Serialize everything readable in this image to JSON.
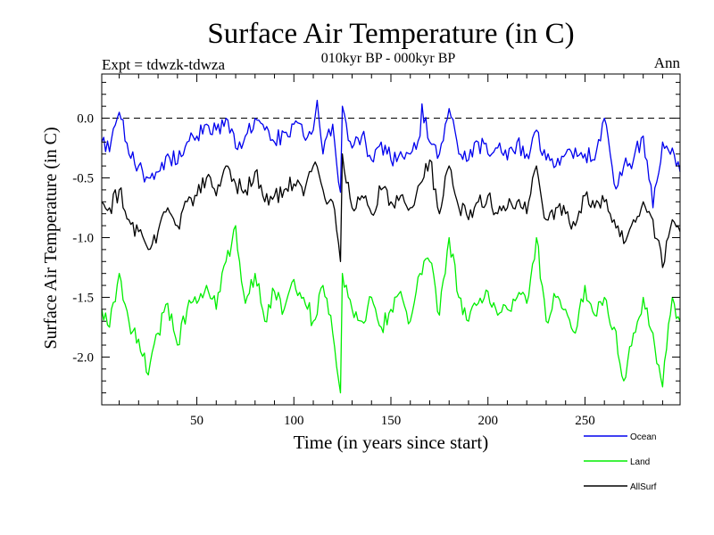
{
  "chart_data": {
    "type": "line",
    "title": "Surface Air Temperature (in C)",
    "subtitle": "010kyr BP - 000kyr BP",
    "left_label": "Expt = tdwzk-tdwza",
    "right_label": "Ann",
    "xlabel": "Time (in years since start)",
    "ylabel": "Surface Air Temperature (in C)",
    "xlim": [
      1,
      299
    ],
    "ylim": [
      -2.4,
      0.37
    ],
    "x_ticks": [
      50,
      100,
      150,
      200,
      250
    ],
    "y_ticks": [
      0.0,
      -0.5,
      -1.0,
      -1.5,
      -2.0
    ],
    "y_tick_labels": [
      "0.0",
      "-0.5",
      "-1.0",
      "-1.5",
      "-2.0"
    ],
    "reference_line": 0.0,
    "legend_position": "bottom-right",
    "series": [
      {
        "name": "Ocean",
        "color": "#0000ee",
        "x": [
          1,
          5,
          10,
          15,
          20,
          25,
          30,
          35,
          40,
          45,
          50,
          55,
          60,
          65,
          70,
          75,
          80,
          85,
          90,
          95,
          100,
          105,
          110,
          112,
          115,
          120,
          124,
          125,
          130,
          135,
          140,
          145,
          150,
          155,
          160,
          165,
          166,
          170,
          175,
          180,
          185,
          190,
          195,
          200,
          205,
          210,
          215,
          220,
          225,
          230,
          235,
          240,
          245,
          250,
          255,
          260,
          265,
          270,
          275,
          280,
          285,
          290,
          295,
          299
        ],
        "values": [
          -0.2,
          -0.28,
          0.05,
          -0.3,
          -0.4,
          -0.5,
          -0.45,
          -0.3,
          -0.38,
          -0.2,
          -0.15,
          -0.05,
          -0.1,
          0.0,
          -0.25,
          -0.15,
          0.0,
          -0.1,
          -0.2,
          -0.12,
          -0.05,
          -0.15,
          -0.1,
          0.15,
          -0.3,
          -0.05,
          -0.62,
          0.1,
          -0.25,
          -0.15,
          -0.35,
          -0.2,
          -0.35,
          -0.28,
          -0.3,
          -0.15,
          0.12,
          -0.2,
          -0.3,
          0.08,
          -0.3,
          -0.35,
          -0.2,
          -0.3,
          -0.25,
          -0.35,
          -0.2,
          -0.3,
          -0.1,
          -0.35,
          -0.4,
          -0.3,
          -0.25,
          -0.3,
          -0.35,
          0.0,
          -0.55,
          -0.4,
          -0.35,
          -0.15,
          -0.75,
          -0.2,
          -0.25,
          -0.45
        ]
      },
      {
        "name": "Land",
        "color": "#00ee00",
        "x": [
          1,
          5,
          10,
          15,
          20,
          25,
          30,
          35,
          40,
          45,
          50,
          55,
          60,
          65,
          70,
          75,
          80,
          85,
          90,
          95,
          100,
          105,
          110,
          115,
          120,
          124,
          125,
          130,
          135,
          140,
          145,
          150,
          155,
          160,
          165,
          170,
          175,
          180,
          185,
          190,
          195,
          200,
          205,
          210,
          215,
          220,
          225,
          230,
          235,
          240,
          245,
          250,
          255,
          260,
          265,
          270,
          275,
          280,
          285,
          290,
          295,
          299
        ],
        "values": [
          -1.6,
          -1.75,
          -1.3,
          -1.7,
          -1.85,
          -2.15,
          -1.8,
          -1.55,
          -1.9,
          -1.6,
          -1.55,
          -1.4,
          -1.6,
          -1.2,
          -0.9,
          -1.55,
          -1.3,
          -1.7,
          -1.45,
          -1.6,
          -1.35,
          -1.5,
          -1.7,
          -1.4,
          -1.8,
          -2.3,
          -1.3,
          -1.6,
          -1.7,
          -1.5,
          -1.75,
          -1.6,
          -1.45,
          -1.7,
          -1.3,
          -1.2,
          -1.65,
          -1.0,
          -1.5,
          -1.7,
          -1.55,
          -1.45,
          -1.65,
          -1.6,
          -1.5,
          -1.55,
          -1.0,
          -1.7,
          -1.5,
          -1.6,
          -1.8,
          -1.4,
          -1.65,
          -1.5,
          -1.75,
          -2.2,
          -1.8,
          -1.5,
          -1.8,
          -2.25,
          -1.5,
          -1.7
        ]
      },
      {
        "name": "AllSurf",
        "color": "#000000",
        "x": [
          1,
          5,
          10,
          15,
          20,
          25,
          30,
          35,
          40,
          45,
          50,
          55,
          60,
          65,
          70,
          75,
          80,
          85,
          90,
          95,
          100,
          105,
          110,
          115,
          120,
          124,
          125,
          130,
          135,
          140,
          145,
          150,
          155,
          160,
          165,
          170,
          175,
          180,
          185,
          190,
          195,
          200,
          205,
          210,
          215,
          220,
          225,
          230,
          235,
          240,
          245,
          250,
          255,
          260,
          265,
          270,
          275,
          280,
          285,
          290,
          295,
          299
        ],
        "values": [
          -0.7,
          -0.75,
          -0.6,
          -0.85,
          -0.95,
          -1.1,
          -0.95,
          -0.75,
          -0.9,
          -0.7,
          -0.65,
          -0.5,
          -0.65,
          -0.4,
          -0.55,
          -0.6,
          -0.45,
          -0.7,
          -0.65,
          -0.6,
          -0.55,
          -0.65,
          -0.4,
          -0.6,
          -0.7,
          -1.2,
          -0.3,
          -0.75,
          -0.65,
          -0.8,
          -0.6,
          -0.7,
          -0.65,
          -0.75,
          -0.55,
          -0.35,
          -0.8,
          -0.4,
          -0.75,
          -0.85,
          -0.7,
          -0.65,
          -0.8,
          -0.75,
          -0.7,
          -0.8,
          -0.4,
          -0.85,
          -0.75,
          -0.8,
          -0.9,
          -0.65,
          -0.75,
          -0.7,
          -0.85,
          -1.05,
          -0.85,
          -0.7,
          -0.85,
          -1.25,
          -0.85,
          -0.95
        ]
      }
    ]
  }
}
